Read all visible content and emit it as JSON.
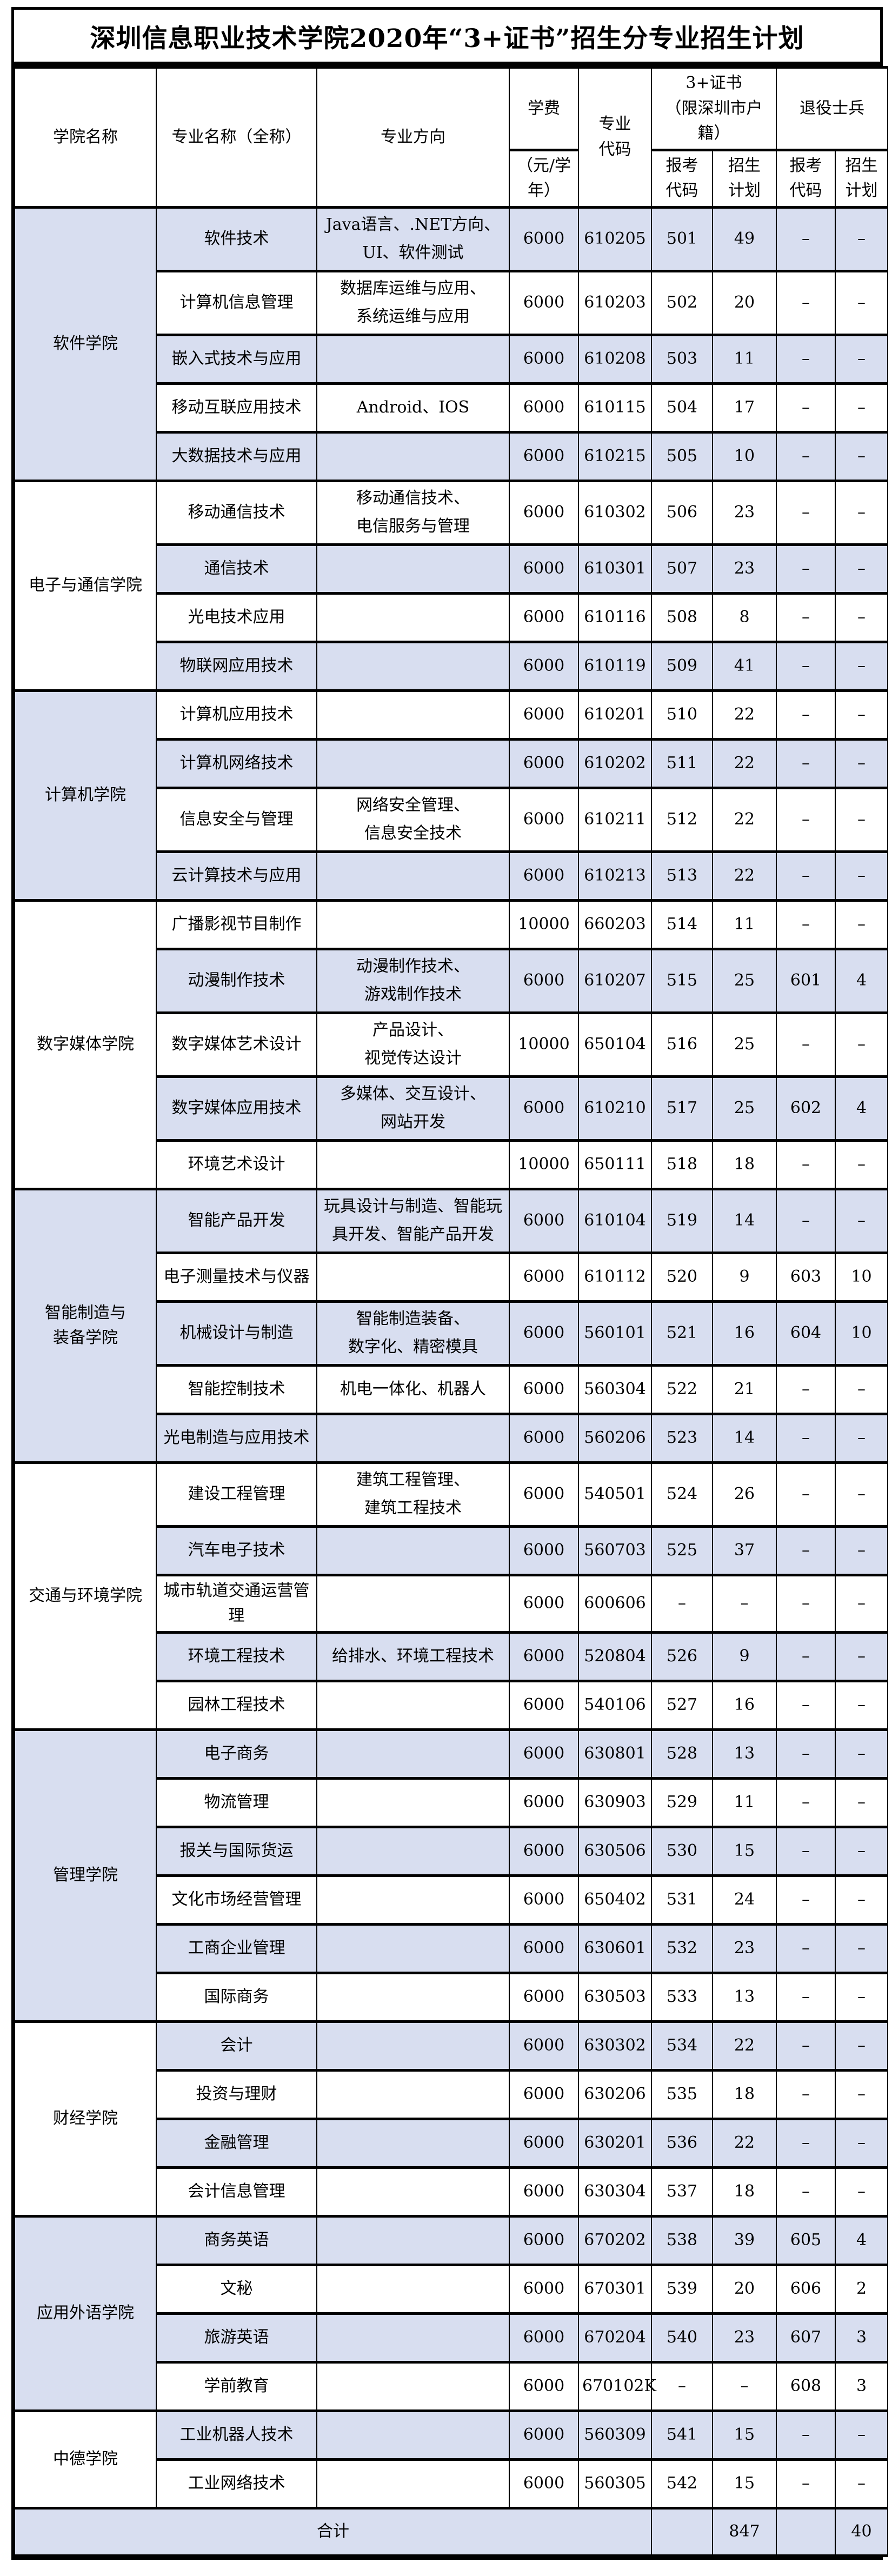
{
  "title": "深圳信息职业技术学院2020年“3+证书”招生分专业招生计划",
  "colors": {
    "stripe": "#d8def0",
    "plain": "#ffffff",
    "border": "#000000"
  },
  "header": {
    "college": "学院名称",
    "major": "专业名称（全称）",
    "direction": "专业方向",
    "tuition_top": "学费",
    "tuition_bottom": "（元/学\n年）",
    "major_code": "专业\n代码",
    "cert_group": "3+证书\n（限深圳市户籍）",
    "veteran_group": "退役士兵",
    "apply_code": "报考\n代码",
    "plan": "招生\n计划"
  },
  "sections": [
    {
      "college": "软件学院",
      "shaded": true,
      "majors": [
        {
          "name": "软件技术",
          "direction": "Java语言、.NET方向、\nUI、软件测试",
          "tuition": "6000",
          "code": "610205",
          "apply_code": "501",
          "plan": "49",
          "vet_code": "–",
          "vet_plan": "–"
        },
        {
          "name": "计算机信息管理",
          "direction": "数据库运维与应用、\n系统运维与应用",
          "tuition": "6000",
          "code": "610203",
          "apply_code": "502",
          "plan": "20",
          "vet_code": "–",
          "vet_plan": "–"
        },
        {
          "name": "嵌入式技术与应用",
          "direction": "",
          "tuition": "6000",
          "code": "610208",
          "apply_code": "503",
          "plan": "11",
          "vet_code": "–",
          "vet_plan": "–"
        },
        {
          "name": "移动互联应用技术",
          "direction": "Android、IOS",
          "tuition": "6000",
          "code": "610115",
          "apply_code": "504",
          "plan": "17",
          "vet_code": "–",
          "vet_plan": "–"
        },
        {
          "name": "大数据技术与应用",
          "direction": "",
          "tuition": "6000",
          "code": "610215",
          "apply_code": "505",
          "plan": "10",
          "vet_code": "–",
          "vet_plan": "–"
        }
      ]
    },
    {
      "college": "电子与通信学院",
      "shaded": false,
      "majors": [
        {
          "name": "移动通信技术",
          "direction": "移动通信技术、\n电信服务与管理",
          "tuition": "6000",
          "code": "610302",
          "apply_code": "506",
          "plan": "23",
          "vet_code": "–",
          "vet_plan": "–"
        },
        {
          "name": "通信技术",
          "direction": "",
          "tuition": "6000",
          "code": "610301",
          "apply_code": "507",
          "plan": "23",
          "vet_code": "–",
          "vet_plan": "–"
        },
        {
          "name": "光电技术应用",
          "direction": "",
          "tuition": "6000",
          "code": "610116",
          "apply_code": "508",
          "plan": "8",
          "vet_code": "–",
          "vet_plan": "–"
        },
        {
          "name": "物联网应用技术",
          "direction": "",
          "tuition": "6000",
          "code": "610119",
          "apply_code": "509",
          "plan": "41",
          "vet_code": "–",
          "vet_plan": "–"
        }
      ]
    },
    {
      "college": "计算机学院",
      "shaded": true,
      "majors": [
        {
          "name": "计算机应用技术",
          "direction": "",
          "tuition": "6000",
          "code": "610201",
          "apply_code": "510",
          "plan": "22",
          "vet_code": "–",
          "vet_plan": "–"
        },
        {
          "name": "计算机网络技术",
          "direction": "",
          "tuition": "6000",
          "code": "610202",
          "apply_code": "511",
          "plan": "22",
          "vet_code": "–",
          "vet_plan": "–"
        },
        {
          "name": "信息安全与管理",
          "direction": "网络安全管理、\n信息安全技术",
          "tuition": "6000",
          "code": "610211",
          "apply_code": "512",
          "plan": "22",
          "vet_code": "–",
          "vet_plan": "–"
        },
        {
          "name": "云计算技术与应用",
          "direction": "",
          "tuition": "6000",
          "code": "610213",
          "apply_code": "513",
          "plan": "22",
          "vet_code": "–",
          "vet_plan": "–"
        }
      ]
    },
    {
      "college": "数字媒体学院",
      "shaded": false,
      "majors": [
        {
          "name": "广播影视节目制作",
          "direction": "",
          "tuition": "10000",
          "code": "660203",
          "apply_code": "514",
          "plan": "11",
          "vet_code": "–",
          "vet_plan": "–"
        },
        {
          "name": "动漫制作技术",
          "direction": "动漫制作技术、\n游戏制作技术",
          "tuition": "6000",
          "code": "610207",
          "apply_code": "515",
          "plan": "25",
          "vet_code": "601",
          "vet_plan": "4"
        },
        {
          "name": "数字媒体艺术设计",
          "direction": "产品设计、\n视觉传达设计",
          "tuition": "10000",
          "code": "650104",
          "apply_code": "516",
          "plan": "25",
          "vet_code": "–",
          "vet_plan": "–"
        },
        {
          "name": "数字媒体应用技术",
          "direction": "多媒体、交互设计、\n网站开发",
          "tuition": "6000",
          "code": "610210",
          "apply_code": "517",
          "plan": "25",
          "vet_code": "602",
          "vet_plan": "4"
        },
        {
          "name": "环境艺术设计",
          "direction": "",
          "tuition": "10000",
          "code": "650111",
          "apply_code": "518",
          "plan": "18",
          "vet_code": "–",
          "vet_plan": "–"
        }
      ]
    },
    {
      "college": "智能制造与\n装备学院",
      "shaded": true,
      "majors": [
        {
          "name": "智能产品开发",
          "direction": "玩具设计与制造、智能玩\n具开发、智能产品开发",
          "tuition": "6000",
          "code": "610104",
          "apply_code": "519",
          "plan": "14",
          "vet_code": "–",
          "vet_plan": "–"
        },
        {
          "name": "电子测量技术与仪器",
          "direction": "",
          "tuition": "6000",
          "code": "610112",
          "apply_code": "520",
          "plan": "9",
          "vet_code": "603",
          "vet_plan": "10"
        },
        {
          "name": "机械设计与制造",
          "direction": "智能制造装备、\n数字化、精密模具",
          "tuition": "6000",
          "code": "560101",
          "apply_code": "521",
          "plan": "16",
          "vet_code": "604",
          "vet_plan": "10"
        },
        {
          "name": "智能控制技术",
          "direction": "机电一体化、机器人",
          "tuition": "6000",
          "code": "560304",
          "apply_code": "522",
          "plan": "21",
          "vet_code": "–",
          "vet_plan": "–"
        },
        {
          "name": "光电制造与应用技术",
          "direction": "",
          "tuition": "6000",
          "code": "560206",
          "apply_code": "523",
          "plan": "14",
          "vet_code": "–",
          "vet_plan": "–"
        }
      ]
    },
    {
      "college": "交通与环境学院",
      "shaded": false,
      "majors": [
        {
          "name": "建设工程管理",
          "direction": "建筑工程管理、\n建筑工程技术",
          "tuition": "6000",
          "code": "540501",
          "apply_code": "524",
          "plan": "26",
          "vet_code": "–",
          "vet_plan": "–"
        },
        {
          "name": "汽车电子技术",
          "direction": "",
          "tuition": "6000",
          "code": "560703",
          "apply_code": "525",
          "plan": "37",
          "vet_code": "–",
          "vet_plan": "–"
        },
        {
          "name": "城市轨道交通运营管理",
          "direction": "",
          "tuition": "6000",
          "code": "600606",
          "apply_code": "–",
          "plan": "–",
          "vet_code": "–",
          "vet_plan": "–"
        },
        {
          "name": "环境工程技术",
          "direction": "给排水、环境工程技术",
          "tuition": "6000",
          "code": "520804",
          "apply_code": "526",
          "plan": "9",
          "vet_code": "–",
          "vet_plan": "–"
        },
        {
          "name": "园林工程技术",
          "direction": "",
          "tuition": "6000",
          "code": "540106",
          "apply_code": "527",
          "plan": "16",
          "vet_code": "–",
          "vet_plan": "–"
        }
      ]
    },
    {
      "college": "管理学院",
      "shaded": true,
      "majors": [
        {
          "name": "电子商务",
          "direction": "",
          "tuition": "6000",
          "code": "630801",
          "apply_code": "528",
          "plan": "13",
          "vet_code": "–",
          "vet_plan": "–"
        },
        {
          "name": "物流管理",
          "direction": "",
          "tuition": "6000",
          "code": "630903",
          "apply_code": "529",
          "plan": "11",
          "vet_code": "–",
          "vet_plan": "–"
        },
        {
          "name": "报关与国际货运",
          "direction": "",
          "tuition": "6000",
          "code": "630506",
          "apply_code": "530",
          "plan": "15",
          "vet_code": "–",
          "vet_plan": "–"
        },
        {
          "name": "文化市场经营管理",
          "direction": "",
          "tuition": "6000",
          "code": "650402",
          "apply_code": "531",
          "plan": "24",
          "vet_code": "–",
          "vet_plan": "–"
        },
        {
          "name": "工商企业管理",
          "direction": "",
          "tuition": "6000",
          "code": "630601",
          "apply_code": "532",
          "plan": "23",
          "vet_code": "–",
          "vet_plan": "–"
        },
        {
          "name": "国际商务",
          "direction": "",
          "tuition": "6000",
          "code": "630503",
          "apply_code": "533",
          "plan": "13",
          "vet_code": "–",
          "vet_plan": "–"
        }
      ]
    },
    {
      "college": "财经学院",
      "shaded": false,
      "majors": [
        {
          "name": "会计",
          "direction": "",
          "tuition": "6000",
          "code": "630302",
          "apply_code": "534",
          "plan": "22",
          "vet_code": "–",
          "vet_plan": "–"
        },
        {
          "name": "投资与理财",
          "direction": "",
          "tuition": "6000",
          "code": "630206",
          "apply_code": "535",
          "plan": "18",
          "vet_code": "–",
          "vet_plan": "–"
        },
        {
          "name": "金融管理",
          "direction": "",
          "tuition": "6000",
          "code": "630201",
          "apply_code": "536",
          "plan": "22",
          "vet_code": "–",
          "vet_plan": "–"
        },
        {
          "name": "会计信息管理",
          "direction": "",
          "tuition": "6000",
          "code": "630304",
          "apply_code": "537",
          "plan": "18",
          "vet_code": "–",
          "vet_plan": "–"
        }
      ]
    },
    {
      "college": "应用外语学院",
      "shaded": true,
      "majors": [
        {
          "name": "商务英语",
          "direction": "",
          "tuition": "6000",
          "code": "670202",
          "apply_code": "538",
          "plan": "39",
          "vet_code": "605",
          "vet_plan": "4"
        },
        {
          "name": "文秘",
          "direction": "",
          "tuition": "6000",
          "code": "670301",
          "apply_code": "539",
          "plan": "20",
          "vet_code": "606",
          "vet_plan": "2"
        },
        {
          "name": "旅游英语",
          "direction": "",
          "tuition": "6000",
          "code": "670204",
          "apply_code": "540",
          "plan": "23",
          "vet_code": "607",
          "vet_plan": "3"
        },
        {
          "name": "学前教育",
          "direction": "",
          "tuition": "6000",
          "code": "670102K",
          "apply_code": "–",
          "plan": "–",
          "vet_code": "608",
          "vet_plan": "3"
        }
      ]
    },
    {
      "college": "中德学院",
      "shaded": false,
      "majors": [
        {
          "name": "工业机器人技术",
          "direction": "",
          "tuition": "6000",
          "code": "560309",
          "apply_code": "541",
          "plan": "15",
          "vet_code": "–",
          "vet_plan": "–"
        },
        {
          "name": "工业网络技术",
          "direction": "",
          "tuition": "6000",
          "code": "560305",
          "apply_code": "542",
          "plan": "15",
          "vet_code": "–",
          "vet_plan": "–"
        }
      ]
    }
  ],
  "total": {
    "label": "合计",
    "apply_code": "",
    "plan": "847",
    "vet_code": "",
    "vet_plan": "40"
  }
}
